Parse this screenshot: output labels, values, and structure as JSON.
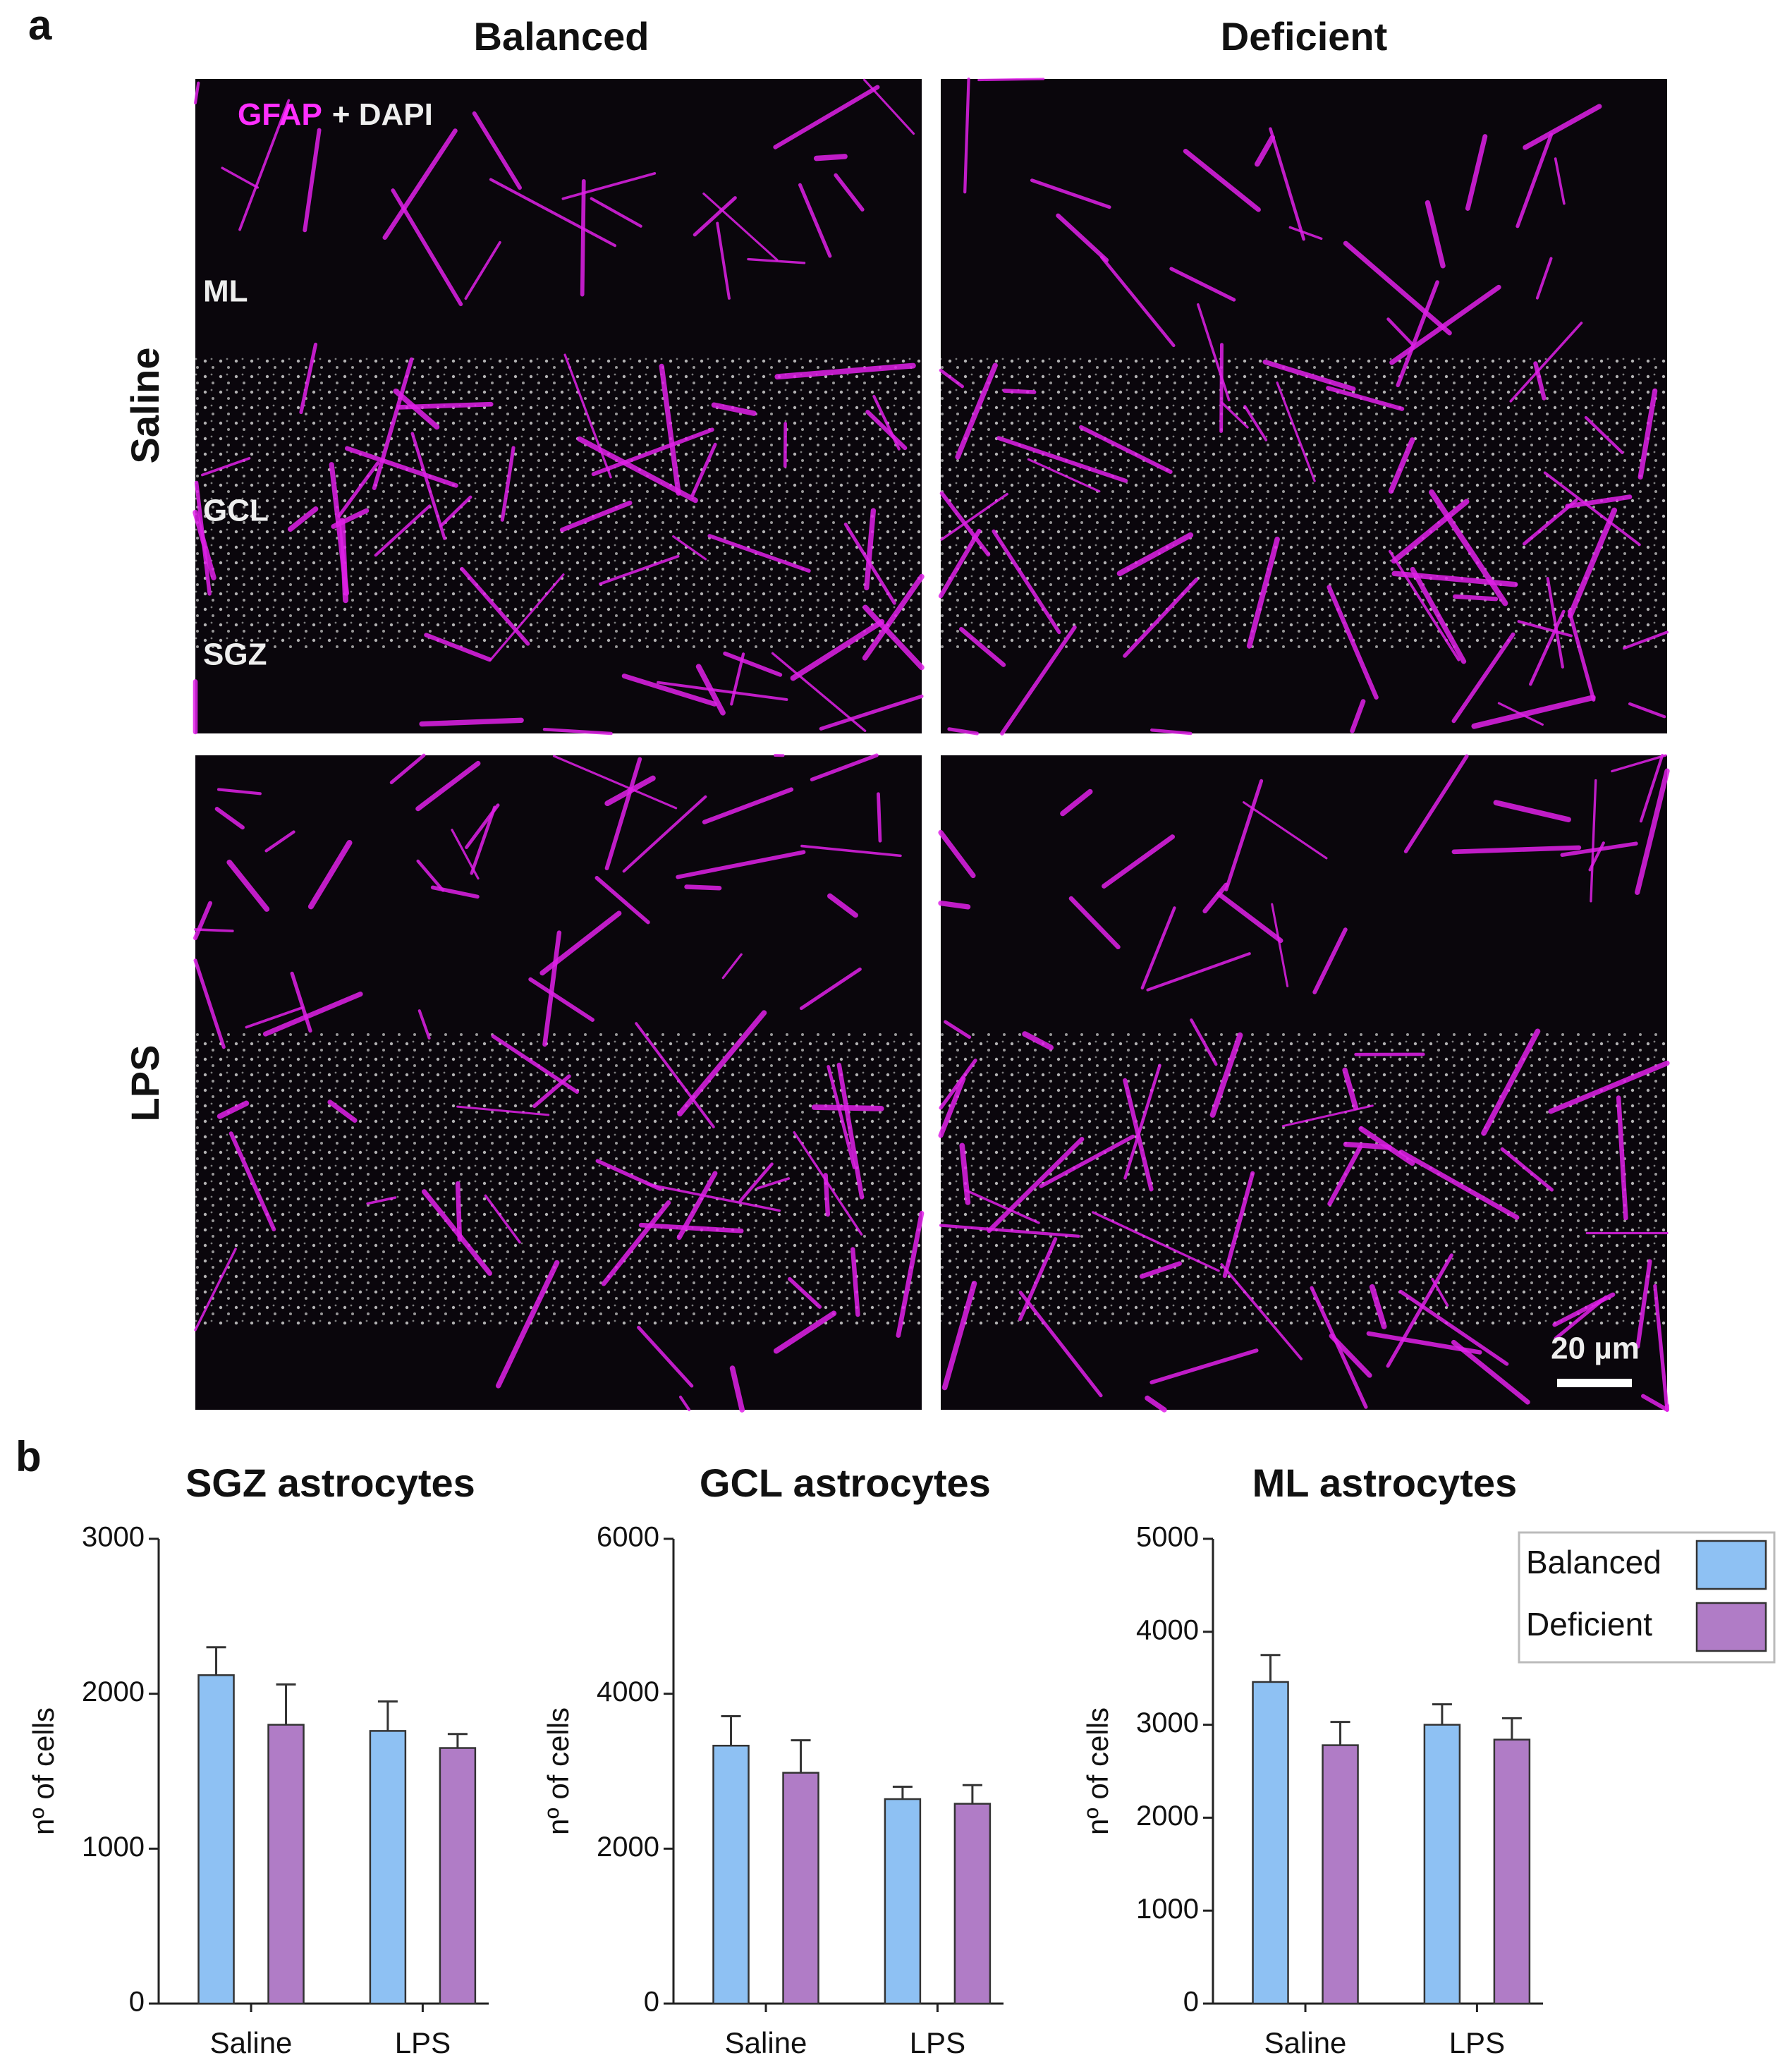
{
  "figure_a": {
    "panel_label": "a",
    "columns": [
      "Balanced",
      "Deficient"
    ],
    "rows": [
      "Saline",
      "LPS"
    ],
    "stain": {
      "marker": "GFAP",
      "counterstain": "+ DAPI"
    },
    "layers": [
      "ML",
      "GCL",
      "SGZ"
    ],
    "scale_bar": "20 µm"
  },
  "panel_b_label": "b",
  "chart_data": [
    {
      "type": "bar",
      "title": "SGZ astrocytes",
      "y_label": "nº of cells",
      "categories": [
        "Saline",
        "LPS"
      ],
      "series": [
        {
          "color": "#8ec1f3",
          "values": [
            2120,
            1760
          ],
          "errors": [
            180,
            190
          ]
        },
        {
          "color": "#b07cc6",
          "values": [
            1800,
            1650
          ],
          "errors": [
            260,
            90
          ]
        }
      ],
      "ylim": [
        0,
        3000
      ],
      "yticks": [
        0,
        1000,
        2000,
        3000
      ]
    },
    {
      "type": "bar",
      "title": "GCL astrocytes",
      "y_label": "nº of cells",
      "categories": [
        "Saline",
        "LPS"
      ],
      "series": [
        {
          "color": "#8ec1f3",
          "values": [
            3330,
            2640
          ],
          "errors": [
            380,
            160
          ]
        },
        {
          "color": "#b07cc6",
          "values": [
            2980,
            2580
          ],
          "errors": [
            420,
            240
          ]
        }
      ],
      "ylim": [
        0,
        6000
      ],
      "yticks": [
        0,
        2000,
        4000,
        6000
      ]
    },
    {
      "type": "bar",
      "title": "ML astrocytes",
      "y_label": "nº of cells",
      "categories": [
        "Saline",
        "LPS"
      ],
      "series": [
        {
          "name": "Balanced",
          "color": "#8ec1f3",
          "values": [
            3460,
            3000
          ],
          "errors": [
            290,
            220
          ]
        },
        {
          "name": "Deficient",
          "color": "#b07cc6",
          "values": [
            2780,
            2840
          ],
          "errors": [
            250,
            230
          ]
        }
      ],
      "ylim": [
        0,
        5000
      ],
      "yticks": [
        0,
        1000,
        2000,
        3000,
        4000,
        5000
      ],
      "legend": "top-right"
    }
  ]
}
